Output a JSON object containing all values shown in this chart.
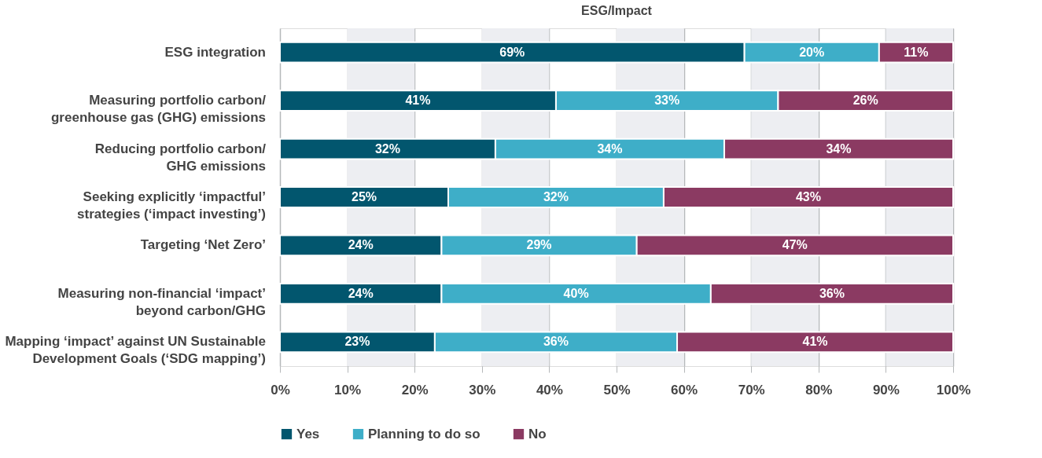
{
  "chart_data": {
    "type": "bar",
    "orientation": "horizontal",
    "stacked": true,
    "title": "ESG/Impact",
    "categories": [
      "ESG integration",
      "Measuring portfolio carbon/\ngreenhouse gas (GHG) emissions",
      "Reducing portfolio carbon/\nGHG emissions",
      "Seeking explicitly ‘impactful’\nstrategies (‘impact investing’)",
      "Targeting ‘Net Zero’",
      "Measuring non-financial ‘impact’\nbeyond carbon/GHG",
      "Mapping ‘impact’ against UN Sustainable\nDevelopment Goals (‘SDG mapping’)"
    ],
    "series": [
      {
        "name": "Yes",
        "color": "#02566e",
        "values": [
          69,
          41,
          32,
          25,
          24,
          24,
          23
        ],
        "value_labels": [
          "69%",
          "41%",
          "32%",
          "25%",
          "24%",
          "24%",
          "23%"
        ]
      },
      {
        "name": "Planning to do so",
        "color": "#3eaec8",
        "values": [
          20,
          33,
          34,
          32,
          29,
          40,
          36
        ],
        "value_labels": [
          "20%",
          "33%",
          "34%",
          "32%",
          "29%",
          "40%",
          "36%"
        ]
      },
      {
        "name": "No",
        "color": "#8b3a62",
        "values": [
          11,
          26,
          34,
          43,
          47,
          36,
          41
        ],
        "value_labels": [
          "11%",
          "26%",
          "34%",
          "43%",
          "47%",
          "36%",
          "41%"
        ]
      }
    ],
    "xlim": [
      0,
      100
    ],
    "xticks": [
      {
        "value": 0,
        "label": "0%"
      },
      {
        "value": 10,
        "label": "10%"
      },
      {
        "value": 20,
        "label": "20%"
      },
      {
        "value": 30,
        "label": "30%"
      },
      {
        "value": 40,
        "label": "40%"
      },
      {
        "value": 50,
        "label": "50%"
      },
      {
        "value": 60,
        "label": "60%"
      },
      {
        "value": 70,
        "label": "70%"
      },
      {
        "value": 80,
        "label": "80%"
      },
      {
        "value": 90,
        "label": "90%"
      },
      {
        "value": 100,
        "label": "100%"
      }
    ],
    "bands": [
      {
        "axis": "x",
        "from": 10,
        "to": 20,
        "color": "#edeef2"
      },
      {
        "axis": "x",
        "from": 30,
        "to": 40,
        "color": "#edeef2"
      },
      {
        "axis": "x",
        "from": 50,
        "to": 60,
        "color": "#edeef2"
      },
      {
        "axis": "x",
        "from": 70,
        "to": 80,
        "color": "#edeef2"
      },
      {
        "axis": "x",
        "from": 90,
        "to": 100,
        "color": "#edeef2"
      }
    ],
    "grid": "x",
    "legend": "bottom"
  }
}
